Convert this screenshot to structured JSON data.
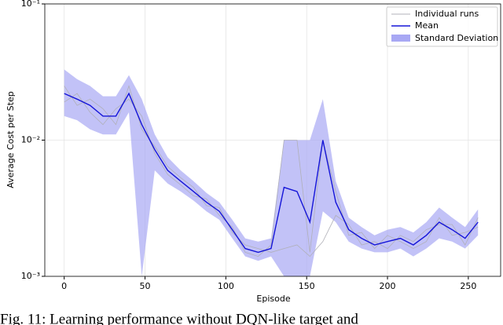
{
  "chart_data": {
    "type": "line",
    "xlabel": "Episode",
    "ylabel": "Average Cost per Step",
    "caption": "Fig. 11: Learning performance without DQN-like target and",
    "x": [
      0,
      8,
      16,
      24,
      32,
      40,
      48,
      56,
      64,
      72,
      80,
      88,
      96,
      104,
      112,
      120,
      128,
      136,
      144,
      152,
      160,
      168,
      176,
      184,
      192,
      200,
      208,
      216,
      224,
      232,
      240,
      248,
      256
    ],
    "runs": {
      "name": "Individual runs",
      "color": "#b0b0b8",
      "series": [
        [
          0.025,
          0.018,
          0.02,
          0.017,
          0.013,
          0.025,
          0.012,
          0.009,
          0.0064,
          0.0053,
          0.0045,
          0.0033,
          0.0032,
          0.0021,
          0.0017,
          0.0016,
          0.0015,
          0.0016,
          0.0017,
          0.0014,
          0.0018,
          0.0028,
          0.0024,
          0.0017,
          0.0018,
          0.0016,
          0.002,
          0.0018,
          0.0022,
          0.0024,
          0.0024,
          0.0017,
          0.0027
        ],
        [
          0.019,
          0.022,
          0.016,
          0.013,
          0.017,
          0.02,
          0.015,
          0.008,
          0.0056,
          0.0047,
          0.0039,
          0.0037,
          0.0028,
          0.0023,
          0.0015,
          0.0014,
          0.0017,
          0.01,
          0.01,
          0.0015,
          0.01,
          0.0042,
          0.002,
          0.0021,
          0.0016,
          0.002,
          0.0018,
          0.0016,
          0.0018,
          0.0027,
          0.002,
          0.0021,
          0.0023
        ]
      ]
    },
    "mean": {
      "name": "Mean",
      "color": "#1515d8",
      "values": [
        0.022,
        0.02,
        0.018,
        0.015,
        0.015,
        0.022,
        0.013,
        0.0085,
        0.006,
        0.005,
        0.0042,
        0.0035,
        0.003,
        0.0022,
        0.0016,
        0.0015,
        0.0016,
        0.0045,
        0.0042,
        0.0025,
        0.01,
        0.0035,
        0.0022,
        0.0019,
        0.0017,
        0.0018,
        0.0019,
        0.0017,
        0.002,
        0.0025,
        0.0022,
        0.0019,
        0.0025
      ]
    },
    "band": {
      "name": "Standard Deviation",
      "color": "#a8a8f4",
      "lower": [
        0.015,
        0.014,
        0.012,
        0.011,
        0.011,
        0.016,
        0.001,
        0.006,
        0.0048,
        0.0042,
        0.0036,
        0.003,
        0.0026,
        0.0019,
        0.0014,
        0.0013,
        0.0014,
        0.001,
        0.001,
        0.001,
        0.003,
        0.0025,
        0.0018,
        0.0016,
        0.0015,
        0.0015,
        0.0016,
        0.0014,
        0.0016,
        0.0019,
        0.0018,
        0.0016,
        0.002
      ],
      "upper": [
        0.033,
        0.028,
        0.025,
        0.021,
        0.021,
        0.03,
        0.02,
        0.011,
        0.0075,
        0.006,
        0.005,
        0.0041,
        0.0035,
        0.0026,
        0.0019,
        0.0018,
        0.0019,
        0.01,
        0.01,
        0.01,
        0.02,
        0.005,
        0.0027,
        0.0023,
        0.002,
        0.0022,
        0.0023,
        0.0021,
        0.0025,
        0.0032,
        0.0027,
        0.0023,
        0.0031
      ]
    },
    "xlim": [
      -12,
      270
    ],
    "xticks": [
      0,
      50,
      100,
      150,
      200,
      250
    ],
    "ylim": [
      0.001,
      0.1
    ],
    "yticks": [
      {
        "value": 0.001,
        "label": "10⁻³"
      },
      {
        "value": 0.01,
        "label": "10⁻²"
      },
      {
        "value": 0.1,
        "label": "10⁻¹"
      }
    ],
    "log_y": true,
    "grid": true,
    "legend": "upper right"
  }
}
